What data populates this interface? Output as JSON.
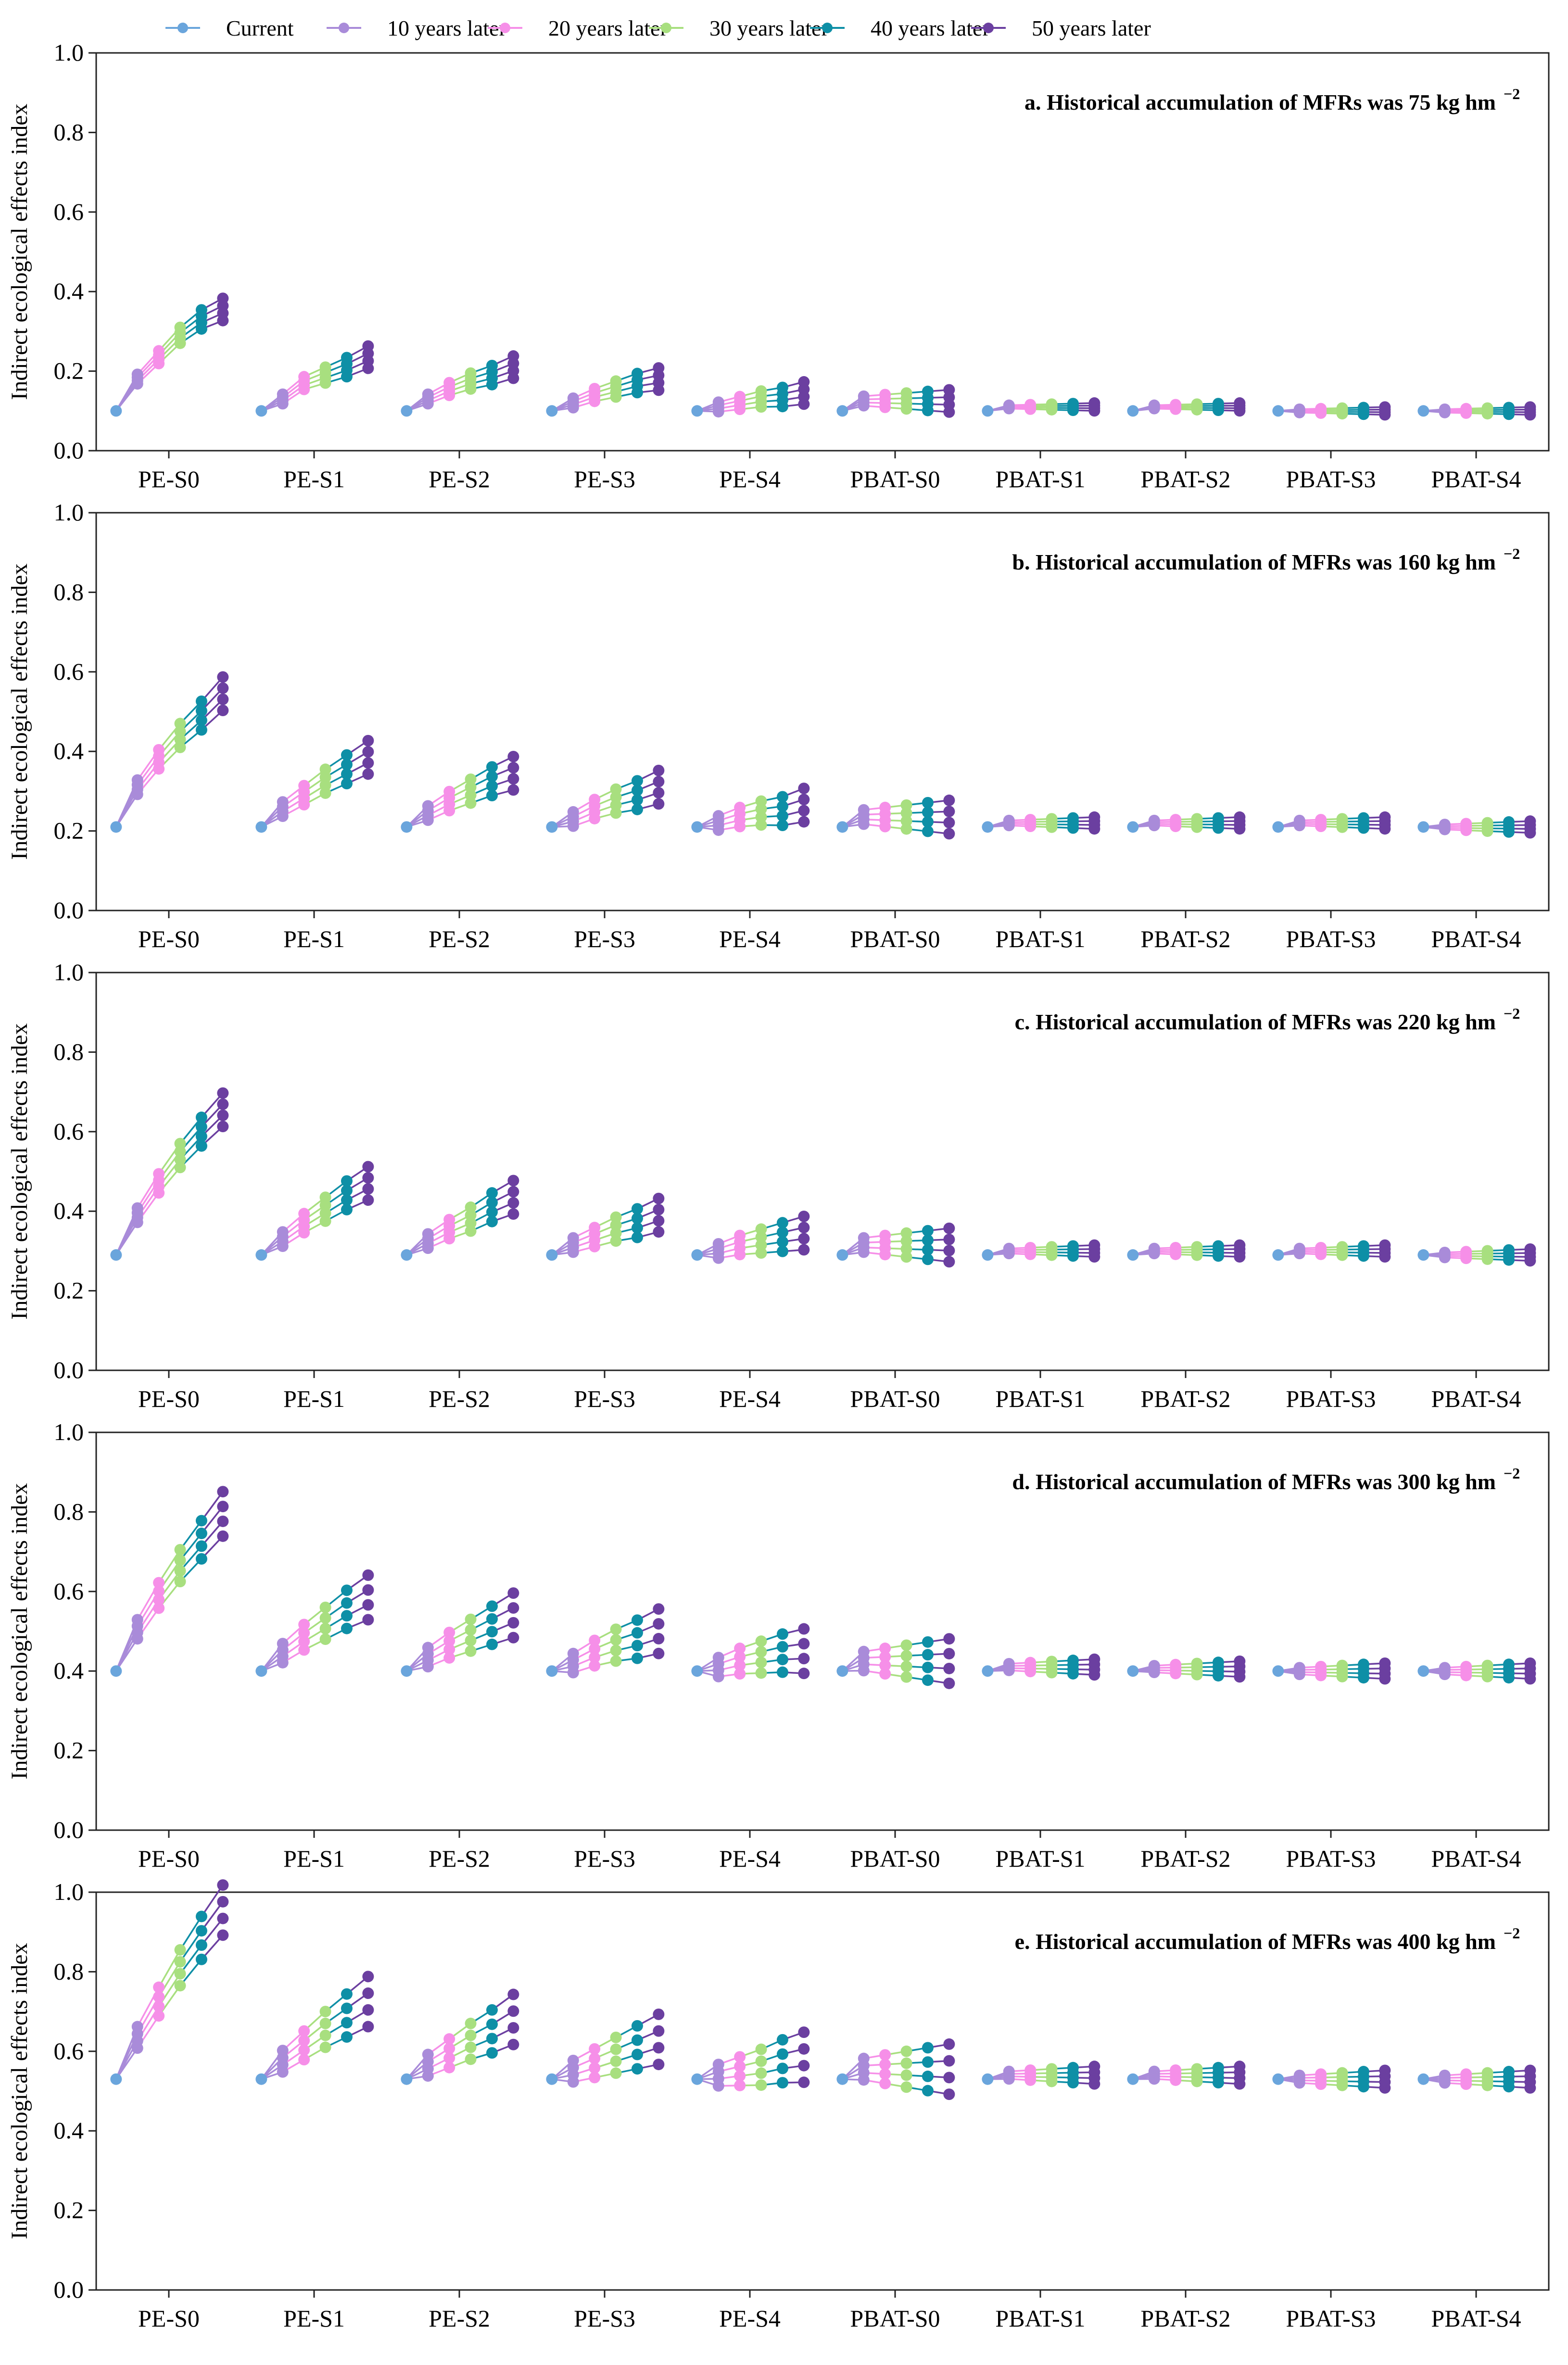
{
  "chart_data": {
    "type": "line",
    "ylabel": "Indirect ecological effects index",
    "ylim": [
      0,
      1.0
    ],
    "yticks": [
      0.0,
      0.2,
      0.4,
      0.6,
      0.8,
      1.0
    ],
    "ytick_labels": [
      "0.0",
      "0.2",
      "0.4",
      "0.6",
      "0.8",
      "1.0"
    ],
    "legend_position": "top",
    "categories": [
      "PE-S0",
      "PE-S1",
      "PE-S2",
      "PE-S3",
      "PE-S4",
      "PBAT-S0",
      "PBAT-S1",
      "PBAT-S2",
      "PBAT-S3",
      "PBAT-S4"
    ],
    "series": [
      {
        "name": "Current",
        "color": "#6aa5dc"
      },
      {
        "name": "10 years later",
        "color": "#a98bd9"
      },
      {
        "name": "20 years later",
        "color": "#f68fe8"
      },
      {
        "name": "30 years later",
        "color": "#a8df7f"
      },
      {
        "name": "40 years later",
        "color": "#0e8fa6"
      },
      {
        "name": "50 years later",
        "color": "#6b3fa0"
      }
    ],
    "panels": [
      {
        "title": "a. Historical accumulation of MFRs was 75 kg hm",
        "title_superscript": "−2",
        "current": 0.1,
        "spread": 0.04,
        "groups": [
          {
            "category": "PE-S0",
            "values": [
              0.1,
              0.18,
              0.235,
              0.29,
              0.33,
              0.355
            ]
          },
          {
            "category": "PE-S1",
            "values": [
              0.1,
              0.13,
              0.17,
              0.19,
              0.21,
              0.235
            ]
          },
          {
            "category": "PE-S2",
            "values": [
              0.1,
              0.13,
              0.155,
              0.175,
              0.19,
              0.21
            ]
          },
          {
            "category": "PE-S3",
            "values": [
              0.1,
              0.12,
              0.14,
              0.155,
              0.17,
              0.18
            ]
          },
          {
            "category": "PE-S4",
            "values": [
              0.1,
              0.11,
              0.12,
              0.13,
              0.135,
              0.145
            ]
          },
          {
            "category": "PBAT-S0",
            "values": [
              0.1,
              0.125,
              0.125,
              0.125,
              0.125,
              0.125
            ]
          },
          {
            "category": "PBAT-S1",
            "values": [
              0.1,
              0.11,
              0.11,
              0.11,
              0.11,
              0.11
            ]
          },
          {
            "category": "PBAT-S2",
            "values": [
              0.1,
              0.11,
              0.11,
              0.11,
              0.11,
              0.11
            ]
          },
          {
            "category": "PBAT-S3",
            "values": [
              0.1,
              0.1,
              0.1,
              0.1,
              0.1,
              0.1
            ]
          },
          {
            "category": "PBAT-S4",
            "values": [
              0.1,
              0.1,
              0.1,
              0.1,
              0.1,
              0.1
            ]
          }
        ]
      },
      {
        "title": "b. Historical accumulation of MFRs was 160 kg hm",
        "title_superscript": "−2",
        "current": 0.21,
        "spread": 0.06,
        "groups": [
          {
            "category": "PE-S0",
            "values": [
              0.21,
              0.31,
              0.38,
              0.44,
              0.49,
              0.545
            ]
          },
          {
            "category": "PE-S1",
            "values": [
              0.21,
              0.255,
              0.29,
              0.325,
              0.355,
              0.385
            ]
          },
          {
            "category": "PE-S2",
            "values": [
              0.21,
              0.245,
              0.275,
              0.3,
              0.325,
              0.345
            ]
          },
          {
            "category": "PE-S3",
            "values": [
              0.21,
              0.23,
              0.255,
              0.275,
              0.29,
              0.31
            ]
          },
          {
            "category": "PE-S4",
            "values": [
              0.21,
              0.22,
              0.235,
              0.245,
              0.25,
              0.265
            ]
          },
          {
            "category": "PBAT-S0",
            "values": [
              0.21,
              0.235,
              0.235,
              0.235,
              0.235,
              0.235
            ]
          },
          {
            "category": "PBAT-S1",
            "values": [
              0.21,
              0.22,
              0.22,
              0.22,
              0.22,
              0.22
            ]
          },
          {
            "category": "PBAT-S2",
            "values": [
              0.21,
              0.22,
              0.22,
              0.22,
              0.22,
              0.22
            ]
          },
          {
            "category": "PBAT-S3",
            "values": [
              0.21,
              0.22,
              0.22,
              0.22,
              0.22,
              0.22
            ]
          },
          {
            "category": "PBAT-S4",
            "values": [
              0.21,
              0.21,
              0.21,
              0.21,
              0.21,
              0.21
            ]
          }
        ]
      },
      {
        "title": "c. Historical accumulation of MFRs was 220 kg hm",
        "title_superscript": "−2",
        "current": 0.29,
        "spread": 0.06,
        "groups": [
          {
            "category": "PE-S0",
            "values": [
              0.29,
              0.39,
              0.47,
              0.54,
              0.6,
              0.655
            ]
          },
          {
            "category": "PE-S1",
            "values": [
              0.29,
              0.33,
              0.37,
              0.405,
              0.44,
              0.47
            ]
          },
          {
            "category": "PE-S2",
            "values": [
              0.29,
              0.325,
              0.355,
              0.38,
              0.41,
              0.435
            ]
          },
          {
            "category": "PE-S3",
            "values": [
              0.29,
              0.315,
              0.335,
              0.355,
              0.37,
              0.39
            ]
          },
          {
            "category": "PE-S4",
            "values": [
              0.29,
              0.3,
              0.315,
              0.325,
              0.335,
              0.345
            ]
          },
          {
            "category": "PBAT-S0",
            "values": [
              0.29,
              0.315,
              0.315,
              0.315,
              0.315,
              0.315
            ]
          },
          {
            "category": "PBAT-S1",
            "values": [
              0.29,
              0.3,
              0.3,
              0.3,
              0.3,
              0.3
            ]
          },
          {
            "category": "PBAT-S2",
            "values": [
              0.29,
              0.3,
              0.3,
              0.3,
              0.3,
              0.3
            ]
          },
          {
            "category": "PBAT-S3",
            "values": [
              0.29,
              0.3,
              0.3,
              0.3,
              0.3,
              0.3
            ]
          },
          {
            "category": "PBAT-S4",
            "values": [
              0.29,
              0.29,
              0.29,
              0.29,
              0.29,
              0.29
            ]
          }
        ]
      },
      {
        "title": "d. Historical accumulation of MFRs was 300 kg hm",
        "title_superscript": "−2",
        "current": 0.4,
        "spread": 0.08,
        "groups": [
          {
            "category": "PE-S0",
            "values": [
              0.4,
              0.505,
              0.59,
              0.665,
              0.73,
              0.795
            ]
          },
          {
            "category": "PE-S1",
            "values": [
              0.4,
              0.445,
              0.485,
              0.52,
              0.555,
              0.585
            ]
          },
          {
            "category": "PE-S2",
            "values": [
              0.4,
              0.435,
              0.465,
              0.49,
              0.515,
              0.54
            ]
          },
          {
            "category": "PE-S3",
            "values": [
              0.4,
              0.42,
              0.445,
              0.465,
              0.48,
              0.5
            ]
          },
          {
            "category": "PE-S4",
            "values": [
              0.4,
              0.41,
              0.425,
              0.435,
              0.445,
              0.45
            ]
          },
          {
            "category": "PBAT-S0",
            "values": [
              0.4,
              0.425,
              0.425,
              0.425,
              0.425,
              0.425
            ]
          },
          {
            "category": "PBAT-S1",
            "values": [
              0.4,
              0.41,
              0.41,
              0.41,
              0.41,
              0.41
            ]
          },
          {
            "category": "PBAT-S2",
            "values": [
              0.4,
              0.405,
              0.405,
              0.405,
              0.405,
              0.405
            ]
          },
          {
            "category": "PBAT-S3",
            "values": [
              0.4,
              0.4,
              0.4,
              0.4,
              0.4,
              0.4
            ]
          },
          {
            "category": "PBAT-S4",
            "values": [
              0.4,
              0.4,
              0.4,
              0.4,
              0.4,
              0.4
            ]
          }
        ]
      },
      {
        "title": "e. Historical accumulation of MFRs was 400 kg hm",
        "title_superscript": "−2",
        "current": 0.53,
        "spread": 0.09,
        "groups": [
          {
            "category": "PE-S0",
            "values": [
              0.53,
              0.635,
              0.725,
              0.81,
              0.885,
              0.955
            ]
          },
          {
            "category": "PE-S1",
            "values": [
              0.53,
              0.575,
              0.615,
              0.655,
              0.69,
              0.725
            ]
          },
          {
            "category": "PE-S2",
            "values": [
              0.53,
              0.565,
              0.595,
              0.625,
              0.65,
              0.68
            ]
          },
          {
            "category": "PE-S3",
            "values": [
              0.53,
              0.55,
              0.57,
              0.59,
              0.61,
              0.63
            ]
          },
          {
            "category": "PE-S4",
            "values": [
              0.53,
              0.54,
              0.55,
              0.56,
              0.575,
              0.585
            ]
          },
          {
            "category": "PBAT-S0",
            "values": [
              0.53,
              0.555,
              0.555,
              0.555,
              0.555,
              0.555
            ]
          },
          {
            "category": "PBAT-S1",
            "values": [
              0.53,
              0.54,
              0.54,
              0.54,
              0.54,
              0.54
            ]
          },
          {
            "category": "PBAT-S2",
            "values": [
              0.53,
              0.54,
              0.54,
              0.54,
              0.54,
              0.54
            ]
          },
          {
            "category": "PBAT-S3",
            "values": [
              0.53,
              0.53,
              0.53,
              0.53,
              0.53,
              0.53
            ]
          },
          {
            "category": "PBAT-S4",
            "values": [
              0.53,
              0.53,
              0.53,
              0.53,
              0.53,
              0.53
            ]
          }
        ]
      }
    ]
  }
}
